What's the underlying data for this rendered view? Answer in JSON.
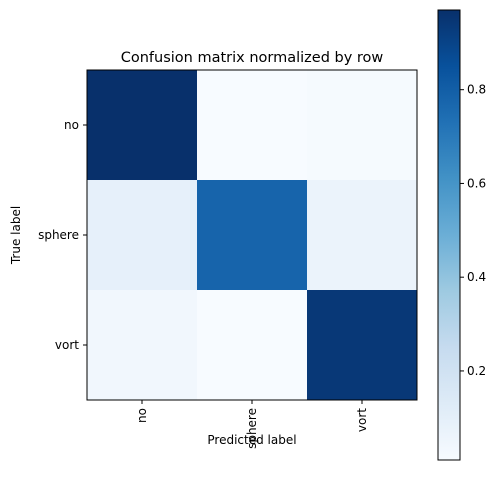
{
  "chart_data": {
    "type": "heatmap",
    "title": "Confusion matrix normalized by row",
    "xlabel": "Predicted label",
    "ylabel": "True label",
    "x_categories": [
      "no",
      "sphere",
      "vort"
    ],
    "y_categories": [
      "no",
      "sphere",
      "vort"
    ],
    "values": [
      [
        0.97,
        0.01,
        0.02
      ],
      [
        0.09,
        0.78,
        0.07
      ],
      [
        0.04,
        0.01,
        0.94
      ]
    ],
    "colormap": "Blues",
    "colorbar": {
      "range": [
        0.01,
        0.97
      ],
      "ticks": [
        0.2,
        0.4,
        0.6,
        0.8
      ],
      "tick_labels": [
        "0.2",
        "0.4",
        "0.6",
        "0.8"
      ]
    },
    "x_tick_rotation": "vertical",
    "grid": false
  }
}
